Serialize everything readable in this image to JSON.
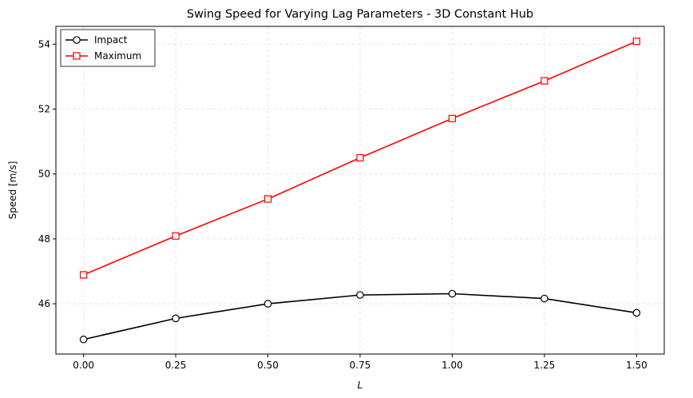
{
  "chart_data": {
    "type": "line",
    "title": "Swing Speed for Varying Lag Parameters - 3D Constant Hub",
    "xlabel": "L",
    "ylabel": "Speed [m/s]",
    "x": [
      0.0,
      0.25,
      0.5,
      0.75,
      1.0,
      1.25,
      1.5
    ],
    "x_tick_labels": [
      "0.00",
      "0.25",
      "0.50",
      "0.75",
      "1.00",
      "1.25",
      "1.50"
    ],
    "y_ticks": [
      46,
      48,
      50,
      52,
      54
    ],
    "y_tick_labels": [
      "46",
      "48",
      "50",
      "52",
      "54"
    ],
    "xlim": [
      -0.075,
      1.575
    ],
    "ylim": [
      44.45,
      54.55
    ],
    "grid": true,
    "legend_position": "top-left",
    "series": [
      {
        "name": "Impact",
        "color": "#000000",
        "marker": "circle",
        "values": [
          44.9,
          45.55,
          46.0,
          46.27,
          46.31,
          46.16,
          45.72
        ]
      },
      {
        "name": "Maximum",
        "color": "#ff0000",
        "marker": "square",
        "values": [
          46.89,
          48.09,
          49.23,
          50.5,
          51.71,
          52.87,
          54.09
        ]
      }
    ]
  }
}
